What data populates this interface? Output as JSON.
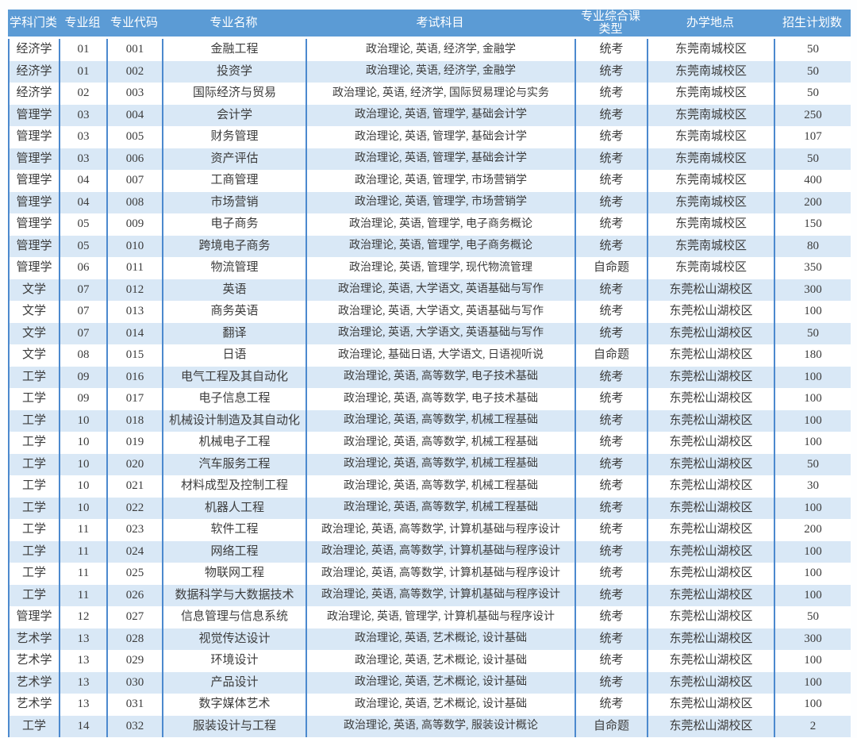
{
  "table": {
    "keys": [
      "discipline",
      "group",
      "code",
      "major",
      "subjects",
      "exam_type",
      "campus",
      "quota"
    ],
    "header": [
      "学科门类",
      "专业组",
      "专业代码",
      "专业名称",
      "考试科目",
      "专业综合课\n类型",
      "办学地点",
      "招生计划数"
    ],
    "rows": [
      [
        "经济学",
        "01",
        "001",
        "金融工程",
        "政治理论, 英语, 经济学, 金融学",
        "统考",
        "东莞南城校区",
        "50"
      ],
      [
        "经济学",
        "01",
        "002",
        "投资学",
        "政治理论, 英语, 经济学, 金融学",
        "统考",
        "东莞南城校区",
        "50"
      ],
      [
        "经济学",
        "02",
        "003",
        "国际经济与贸易",
        "政治理论, 英语, 经济学, 国际贸易理论与实务",
        "统考",
        "东莞南城校区",
        "50"
      ],
      [
        "管理学",
        "03",
        "004",
        "会计学",
        "政治理论, 英语, 管理学, 基础会计学",
        "统考",
        "东莞南城校区",
        "250"
      ],
      [
        "管理学",
        "03",
        "005",
        "财务管理",
        "政治理论, 英语, 管理学, 基础会计学",
        "统考",
        "东莞南城校区",
        "107"
      ],
      [
        "管理学",
        "03",
        "006",
        "资产评估",
        "政治理论, 英语, 管理学, 基础会计学",
        "统考",
        "东莞南城校区",
        "50"
      ],
      [
        "管理学",
        "04",
        "007",
        "工商管理",
        "政治理论, 英语, 管理学, 市场营销学",
        "统考",
        "东莞南城校区",
        "400"
      ],
      [
        "管理学",
        "04",
        "008",
        "市场营销",
        "政治理论, 英语, 管理学, 市场营销学",
        "统考",
        "东莞南城校区",
        "200"
      ],
      [
        "管理学",
        "05",
        "009",
        "电子商务",
        "政治理论, 英语, 管理学, 电子商务概论",
        "统考",
        "东莞南城校区",
        "150"
      ],
      [
        "管理学",
        "05",
        "010",
        "跨境电子商务",
        "政治理论, 英语, 管理学, 电子商务概论",
        "统考",
        "东莞南城校区",
        "80"
      ],
      [
        "管理学",
        "06",
        "011",
        "物流管理",
        "政治理论, 英语, 管理学, 现代物流管理",
        "自命题",
        "东莞南城校区",
        "350"
      ],
      [
        "文学",
        "07",
        "012",
        "英语",
        "政治理论, 英语, 大学语文, 英语基础与写作",
        "统考",
        "东莞松山湖校区",
        "300"
      ],
      [
        "文学",
        "07",
        "013",
        "商务英语",
        "政治理论, 英语, 大学语文, 英语基础与写作",
        "统考",
        "东莞松山湖校区",
        "100"
      ],
      [
        "文学",
        "07",
        "014",
        "翻译",
        "政治理论, 英语, 大学语文, 英语基础与写作",
        "统考",
        "东莞松山湖校区",
        "50"
      ],
      [
        "文学",
        "08",
        "015",
        "日语",
        "政治理论, 基础日语, 大学语文, 日语视听说",
        "自命题",
        "东莞松山湖校区",
        "180"
      ],
      [
        "工学",
        "09",
        "016",
        "电气工程及其自动化",
        "政治理论, 英语, 高等数学, 电子技术基础",
        "统考",
        "东莞松山湖校区",
        "100"
      ],
      [
        "工学",
        "09",
        "017",
        "电子信息工程",
        "政治理论, 英语, 高等数学, 电子技术基础",
        "统考",
        "东莞松山湖校区",
        "100"
      ],
      [
        "工学",
        "10",
        "018",
        "机械设计制造及其自动化",
        "政治理论, 英语, 高等数学, 机械工程基础",
        "统考",
        "东莞松山湖校区",
        "100"
      ],
      [
        "工学",
        "10",
        "019",
        "机械电子工程",
        "政治理论, 英语, 高等数学, 机械工程基础",
        "统考",
        "东莞松山湖校区",
        "100"
      ],
      [
        "工学",
        "10",
        "020",
        "汽车服务工程",
        "政治理论, 英语, 高等数学, 机械工程基础",
        "统考",
        "东莞松山湖校区",
        "50"
      ],
      [
        "工学",
        "10",
        "021",
        "材料成型及控制工程",
        "政治理论, 英语, 高等数学, 机械工程基础",
        "统考",
        "东莞松山湖校区",
        "30"
      ],
      [
        "工学",
        "10",
        "022",
        "机器人工程",
        "政治理论, 英语, 高等数学, 机械工程基础",
        "统考",
        "东莞松山湖校区",
        "100"
      ],
      [
        "工学",
        "11",
        "023",
        "软件工程",
        "政治理论, 英语, 高等数学, 计算机基础与程序设计",
        "统考",
        "东莞松山湖校区",
        "200"
      ],
      [
        "工学",
        "11",
        "024",
        "网络工程",
        "政治理论, 英语, 高等数学, 计算机基础与程序设计",
        "统考",
        "东莞松山湖校区",
        "100"
      ],
      [
        "工学",
        "11",
        "025",
        "物联网工程",
        "政治理论, 英语, 高等数学, 计算机基础与程序设计",
        "统考",
        "东莞松山湖校区",
        "100"
      ],
      [
        "工学",
        "11",
        "026",
        "数据科学与大数据技术",
        "政治理论, 英语, 高等数学, 计算机基础与程序设计",
        "统考",
        "东莞松山湖校区",
        "100"
      ],
      [
        "管理学",
        "12",
        "027",
        "信息管理与信息系统",
        "政治理论, 英语, 管理学, 计算机基础与程序设计",
        "统考",
        "东莞松山湖校区",
        "50"
      ],
      [
        "艺术学",
        "13",
        "028",
        "视觉传达设计",
        "政治理论, 英语, 艺术概论, 设计基础",
        "统考",
        "东莞松山湖校区",
        "300"
      ],
      [
        "艺术学",
        "13",
        "029",
        "环境设计",
        "政治理论, 英语, 艺术概论, 设计基础",
        "统考",
        "东莞松山湖校区",
        "100"
      ],
      [
        "艺术学",
        "13",
        "030",
        "产品设计",
        "政治理论, 英语, 艺术概论, 设计基础",
        "统考",
        "东莞松山湖校区",
        "100"
      ],
      [
        "艺术学",
        "13",
        "031",
        "数字媒体艺术",
        "政治理论, 英语, 艺术概论, 设计基础",
        "统考",
        "东莞松山湖校区",
        "100"
      ],
      [
        "工学",
        "14",
        "032",
        "服装设计与工程",
        "政治理论, 英语, 高等数学, 服装设计概论",
        "自命题",
        "东莞松山湖校区",
        "2"
      ]
    ]
  },
  "colors": {
    "header_bg": "#5b9bd5",
    "header_text": "#ffffff",
    "alt_row_bg": "#d9e8f6",
    "row_bg": "#ffffff",
    "grid_line": "#4c89ce",
    "body_text": "#3c3c3c"
  }
}
